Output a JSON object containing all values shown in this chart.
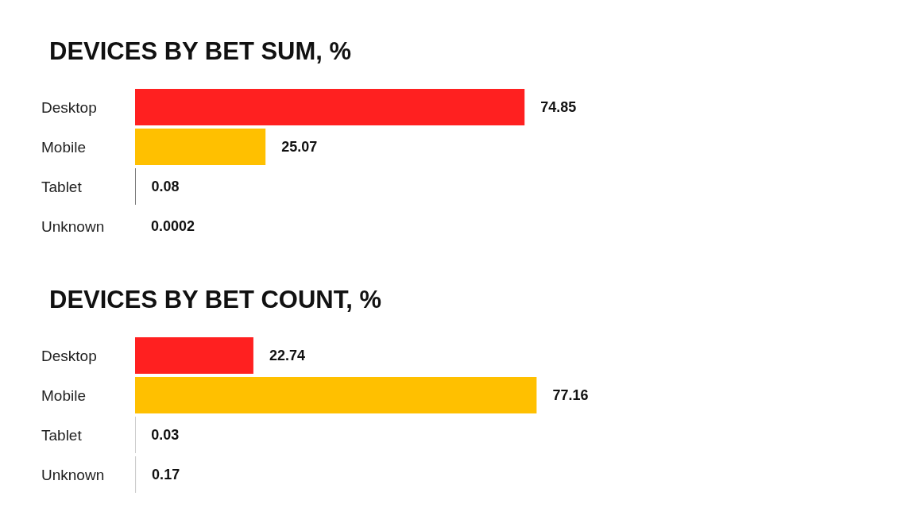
{
  "chart_data": [
    {
      "type": "bar",
      "orientation": "horizontal",
      "title": "DEVICES BY BET SUM, %",
      "categories": [
        "Desktop",
        "Mobile",
        "Tablet",
        "Unknown"
      ],
      "values": [
        74.85,
        25.07,
        0.08,
        0.0002
      ],
      "colors": [
        "#ff2020",
        "#ffc000",
        "#000000",
        "#cccccc"
      ],
      "data_labels": true,
      "tick_labels": "y"
    },
    {
      "type": "bar",
      "orientation": "horizontal",
      "title": "DEVICES BY BET COUNT, %",
      "categories": [
        "Desktop",
        "Mobile",
        "Tablet",
        "Unknown"
      ],
      "values": [
        22.74,
        77.16,
        0.03,
        0.17
      ],
      "colors": [
        "#ff2020",
        "#ffc000",
        "#000000",
        "#cccccc"
      ],
      "data_labels": true,
      "tick_labels": "y"
    }
  ]
}
